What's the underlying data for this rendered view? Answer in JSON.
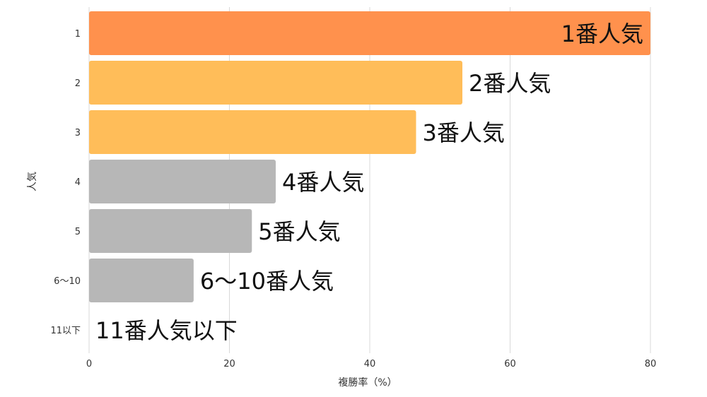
{
  "chart_data": {
    "type": "bar",
    "orientation": "horizontal",
    "xlabel": "複勝率（%）",
    "ylabel": "人気",
    "xlim": [
      0,
      80
    ],
    "xticks": [
      "0",
      "20",
      "40",
      "60",
      "80"
    ],
    "grid": true,
    "categories": [
      "1",
      "2",
      "3",
      "4",
      "5",
      "6〜10",
      "11以下"
    ],
    "values": [
      80,
      53.2,
      46.6,
      26.6,
      23.2,
      14.9,
      0
    ],
    "bar_labels": [
      "1番人気",
      "2番人気",
      "3番人気",
      "4番人気",
      "5番人気",
      "6〜10番人気",
      "11番人気以下"
    ],
    "colors": [
      "#FF914D",
      "#FFBD59",
      "#FFBD59",
      "#B7B7B7",
      "#B7B7B7",
      "#B7B7B7",
      "#B7B7B7"
    ]
  }
}
